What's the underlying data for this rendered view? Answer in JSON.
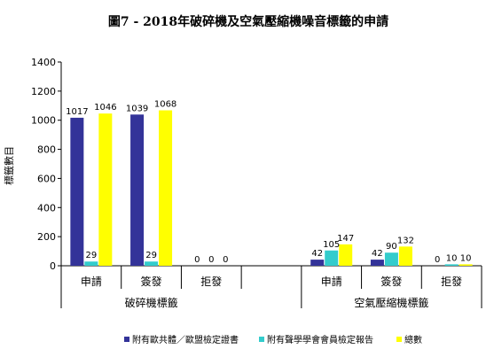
{
  "chart_data": {
    "type": "bar",
    "title": "圖7 - 2018年破碎機及空氣壓縮機噪音標籤的申請",
    "ylabel": "標籤數目",
    "ylim": [
      0,
      1400
    ],
    "yticks": [
      0,
      200,
      400,
      600,
      800,
      1000,
      1200,
      1400
    ],
    "grid": false,
    "legend_position": "bottom",
    "groups": [
      {
        "name": "破碎機標籤",
        "categories": [
          "申請",
          "簽發",
          "拒發"
        ]
      },
      {
        "name": "空氣壓縮機標籤",
        "categories": [
          "申請",
          "簽發",
          "拒發"
        ]
      }
    ],
    "series": [
      {
        "name": "附有歐共體／歐盟檢定證書",
        "color": "#333399",
        "values": [
          1017,
          1039,
          0,
          42,
          42,
          0
        ]
      },
      {
        "name": "附有聲學學會會員檢定報告",
        "color": "#33CCCC",
        "values": [
          29,
          29,
          0,
          105,
          90,
          10
        ]
      },
      {
        "name": "總數",
        "color": "#FFFF00",
        "values": [
          1046,
          1068,
          0,
          147,
          132,
          10
        ]
      }
    ]
  }
}
